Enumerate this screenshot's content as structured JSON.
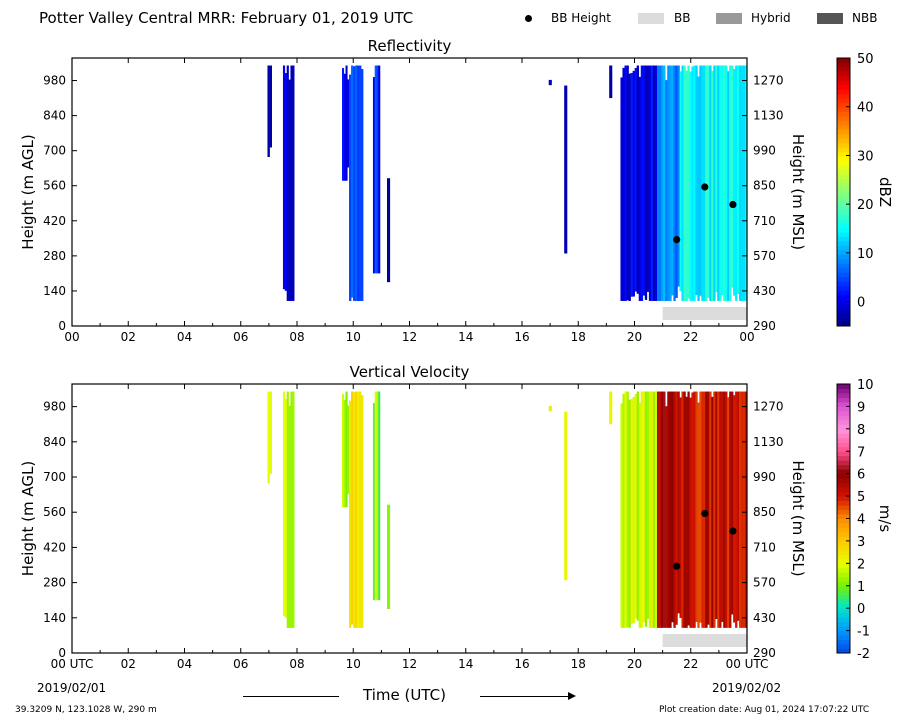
{
  "header": {
    "title": "Potter Valley Central MRR:  February 01, 2019 UTC",
    "legend": [
      {
        "label": "BB Height",
        "kind": "dot",
        "color": "#000000"
      },
      {
        "label": "BB",
        "kind": "swatch",
        "color": "#dcdcdc"
      },
      {
        "label": "Hybrid",
        "kind": "swatch",
        "color": "#999999"
      },
      {
        "label": "NBB",
        "kind": "swatch",
        "color": "#555555"
      }
    ]
  },
  "footer": {
    "location": "39.3209 N, 123.1028 W, 290 m",
    "created": "Plot creation date: Aug 01, 2024 17:07:22 UTC",
    "xlabel": "Time (UTC)",
    "start_label": "00 UTC",
    "start_date": "2019/02/01",
    "end_label": "00 UTC",
    "end_date": "2019/02/02"
  },
  "chart_data": [
    {
      "type": "heatmap",
      "title": "Reflectivity",
      "ylabel": "Height (m AGL)",
      "y2label": "Height (m MSL)",
      "xlim": [
        0,
        24
      ],
      "ylim": [
        0,
        1070
      ],
      "xticks": [
        "00",
        "02",
        "04",
        "06",
        "08",
        "10",
        "12",
        "14",
        "16",
        "18",
        "20",
        "22",
        "00"
      ],
      "yticks": [
        0,
        140,
        280,
        420,
        560,
        700,
        840,
        980
      ],
      "y2ticks": [
        290,
        430,
        570,
        710,
        850,
        990,
        1130,
        1270
      ],
      "colorbar": {
        "label": "dBZ",
        "min": -5,
        "max": 50,
        "ticks": [
          0,
          10,
          20,
          30,
          40,
          50
        ]
      },
      "bb_points": [
        {
          "x": 21.5,
          "y": 345
        },
        {
          "x": 22.5,
          "y": 555
        },
        {
          "x": 23.5,
          "y": 485
        }
      ],
      "bb_segments": [
        {
          "x0": 21.0,
          "x1": 24.0,
          "type": "BB"
        }
      ],
      "echo_bands": [
        {
          "x0": 6.95,
          "x1": 7.1,
          "y0": 660,
          "y1": 1040,
          "value": -3
        },
        {
          "x0": 7.5,
          "x1": 7.9,
          "y0": 100,
          "y1": 1040,
          "value": 0
        },
        {
          "x0": 9.6,
          "x1": 9.85,
          "y0": 580,
          "y1": 1040,
          "value": 1
        },
        {
          "x0": 9.85,
          "x1": 10.35,
          "y0": 100,
          "y1": 1040,
          "value": 5
        },
        {
          "x0": 10.7,
          "x1": 10.95,
          "y0": 210,
          "y1": 1040,
          "value": 3
        },
        {
          "x0": 11.2,
          "x1": 11.3,
          "y0": 175,
          "y1": 590,
          "value": -2
        },
        {
          "x0": 16.95,
          "x1": 17.05,
          "y0": 940,
          "y1": 1040,
          "value": -3
        },
        {
          "x0": 17.5,
          "x1": 17.6,
          "y0": 230,
          "y1": 960,
          "value": -3
        },
        {
          "x0": 19.1,
          "x1": 19.2,
          "y0": 910,
          "y1": 1040,
          "value": -3
        },
        {
          "x0": 19.5,
          "x1": 20.8,
          "y0": 100,
          "y1": 1040,
          "value": 0
        },
        {
          "x0": 20.8,
          "x1": 21.6,
          "y0": 100,
          "y1": 1040,
          "value": 8
        },
        {
          "x0": 21.6,
          "x1": 24.0,
          "y0": 100,
          "y1": 1040,
          "value": 15
        }
      ]
    },
    {
      "type": "heatmap",
      "title": "Vertical Velocity",
      "ylabel": "Height (m AGL)",
      "y2label": "Height (m MSL)",
      "xlim": [
        0,
        24
      ],
      "ylim": [
        0,
        1070
      ],
      "xticks": [
        "00 UTC",
        "02",
        "04",
        "06",
        "08",
        "10",
        "12",
        "14",
        "16",
        "18",
        "20",
        "22",
        "00 UTC"
      ],
      "yticks": [
        0,
        140,
        280,
        420,
        560,
        700,
        840,
        980
      ],
      "y2ticks": [
        290,
        430,
        570,
        710,
        850,
        990,
        1130,
        1270
      ],
      "colorbar": {
        "label": "m/s",
        "min": -2,
        "max": 10,
        "ticks": [
          -2,
          -1,
          0,
          1,
          2,
          3,
          4,
          5,
          6,
          7,
          8,
          9,
          10
        ]
      },
      "bb_points": [
        {
          "x": 21.5,
          "y": 345
        },
        {
          "x": 22.5,
          "y": 555
        },
        {
          "x": 23.5,
          "y": 485
        }
      ],
      "bb_segments": [
        {
          "x0": 21.0,
          "x1": 24.0,
          "type": "BB"
        }
      ],
      "echo_bands": [
        {
          "x0": 6.95,
          "x1": 7.1,
          "y0": 660,
          "y1": 1040,
          "value": 2
        },
        {
          "x0": 7.5,
          "x1": 7.9,
          "y0": 100,
          "y1": 1040,
          "value": 1.8
        },
        {
          "x0": 9.6,
          "x1": 9.85,
          "y0": 580,
          "y1": 1040,
          "value": 1.5
        },
        {
          "x0": 9.85,
          "x1": 10.35,
          "y0": 100,
          "y1": 1040,
          "value": 2.5
        },
        {
          "x0": 10.7,
          "x1": 10.95,
          "y0": 210,
          "y1": 1040,
          "value": 1.2
        },
        {
          "x0": 11.2,
          "x1": 11.3,
          "y0": 175,
          "y1": 590,
          "value": 1.6
        },
        {
          "x0": 16.95,
          "x1": 17.05,
          "y0": 940,
          "y1": 1040,
          "value": 2
        },
        {
          "x0": 17.5,
          "x1": 17.6,
          "y0": 230,
          "y1": 960,
          "value": 2
        },
        {
          "x0": 19.1,
          "x1": 19.2,
          "y0": 910,
          "y1": 1040,
          "value": 2.2
        },
        {
          "x0": 19.5,
          "x1": 20.8,
          "y0": 100,
          "y1": 1040,
          "value": 1.8
        },
        {
          "x0": 20.8,
          "x1": 21.6,
          "y0": 100,
          "y1": 1040,
          "value": 5.5
        },
        {
          "x0": 21.6,
          "x1": 24.0,
          "y0": 100,
          "y1": 1040,
          "value": 5.2
        }
      ]
    }
  ]
}
